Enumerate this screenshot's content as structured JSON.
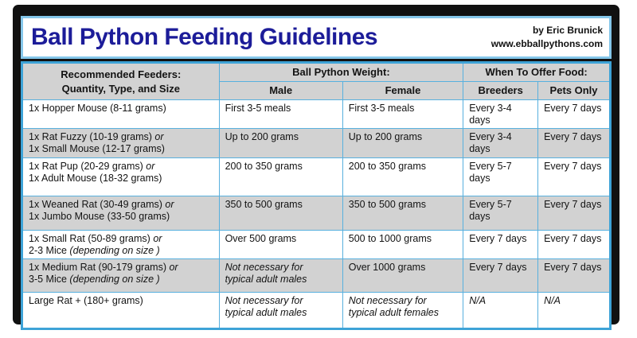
{
  "title": "Ball Python Feeding Guidelines",
  "credit": {
    "author": "by Eric Brunick",
    "website": "www.ebballpythons.com"
  },
  "colors": {
    "title_navy": "#1c1c99",
    "grid_blue": "#58b0de",
    "outer_table_blue": "#3ea3d7",
    "title_border_blue": "#85c7ea",
    "shaded_row_gray": "#d2d2d2",
    "frame_black": "#111111"
  },
  "table": {
    "header": {
      "feeders_group": [
        "Recommended Feeders:",
        "Quantity, Type, and Size"
      ],
      "weight_group": "Ball Python Weight:",
      "offer_group": "When To Offer Food:",
      "sub_columns": [
        "Male",
        "Female",
        "Breeders",
        "Pets Only"
      ]
    },
    "rows": [
      {
        "shaded": false,
        "cells": [
          [
            [
              [
                "1x Hopper Mouse (8-11 grams)",
                false
              ]
            ]
          ],
          [
            [
              [
                "First 3-5 meals",
                false
              ]
            ]
          ],
          [
            [
              [
                "First 3-5 meals",
                false
              ]
            ]
          ],
          [
            [
              [
                "Every 3-4 days",
                false
              ]
            ]
          ],
          [
            [
              [
                "Every 7 days",
                false
              ]
            ]
          ]
        ]
      },
      {
        "shaded": true,
        "cells": [
          [
            [
              [
                "1x Rat Fuzzy (10-19 grams) ",
                false
              ],
              [
                "or",
                true
              ]
            ],
            [
              [
                "1x Small Mouse (12-17 grams)",
                false
              ]
            ]
          ],
          [
            [
              [
                "Up to 200 grams",
                false
              ]
            ]
          ],
          [
            [
              [
                "Up to 200 grams",
                false
              ]
            ]
          ],
          [
            [
              [
                "Every 3-4 days",
                false
              ]
            ]
          ],
          [
            [
              [
                "Every 7 days",
                false
              ]
            ]
          ]
        ]
      },
      {
        "shaded": false,
        "cells": [
          [
            [
              [
                "1x Rat Pup (20-29 grams) ",
                false
              ],
              [
                "or",
                true
              ]
            ],
            [
              [
                "1x Adult Mouse (18-32 grams)",
                false
              ]
            ]
          ],
          [
            [
              [
                "200 to 350 grams",
                false
              ]
            ]
          ],
          [
            [
              [
                "200 to 350 grams",
                false
              ]
            ]
          ],
          [
            [
              [
                "Every 5-7 days",
                false
              ]
            ]
          ],
          [
            [
              [
                "Every 7 days",
                false
              ]
            ]
          ]
        ]
      },
      {
        "shaded": true,
        "cells": [
          [
            [
              [
                "1x Weaned Rat (30-49 grams) ",
                false
              ],
              [
                "or",
                true
              ]
            ],
            [
              [
                "1x Jumbo Mouse (33-50 grams)",
                false
              ]
            ]
          ],
          [
            [
              [
                "350 to 500 grams",
                false
              ]
            ]
          ],
          [
            [
              [
                "350 to 500 grams",
                false
              ]
            ]
          ],
          [
            [
              [
                "Every 5-7 days",
                false
              ]
            ]
          ],
          [
            [
              [
                "Every 7 days",
                false
              ]
            ]
          ]
        ]
      },
      {
        "shaded": false,
        "cells": [
          [
            [
              [
                "1x Small Rat (50-89 grams) ",
                false
              ],
              [
                "or",
                true
              ]
            ],
            [
              [
                "2-3 Mice ",
                false
              ],
              [
                "(depending on size )",
                true
              ]
            ]
          ],
          [
            [
              [
                "Over 500 grams",
                false
              ]
            ]
          ],
          [
            [
              [
                "500 to 1000 grams",
                false
              ]
            ]
          ],
          [
            [
              [
                "Every 7 days",
                false
              ]
            ]
          ],
          [
            [
              [
                "Every 7 days",
                false
              ]
            ]
          ]
        ]
      },
      {
        "shaded": true,
        "cells": [
          [
            [
              [
                "1x Medium Rat (90-179 grams) ",
                false
              ],
              [
                "or",
                true
              ]
            ],
            [
              [
                "3-5 Mice ",
                false
              ],
              [
                "(depending on size )",
                true
              ]
            ]
          ],
          [
            [
              [
                "Not necessary for",
                true
              ]
            ],
            [
              [
                "typical adult males",
                true
              ]
            ]
          ],
          [
            [
              [
                "Over 1000 grams",
                false
              ]
            ]
          ],
          [
            [
              [
                "Every 7 days",
                false
              ]
            ]
          ],
          [
            [
              [
                "Every 7 days",
                false
              ]
            ]
          ]
        ]
      },
      {
        "shaded": false,
        "cells": [
          [
            [
              [
                "Large Rat + (180+ grams)",
                false
              ]
            ]
          ],
          [
            [
              [
                "Not necessary for",
                true
              ]
            ],
            [
              [
                "typical adult males",
                true
              ]
            ]
          ],
          [
            [
              [
                "Not necessary for",
                true
              ]
            ],
            [
              [
                "typical adult females",
                true
              ]
            ]
          ],
          [
            [
              [
                "N/A",
                true
              ]
            ]
          ],
          [
            [
              [
                "N/A",
                true
              ]
            ]
          ]
        ]
      }
    ]
  }
}
